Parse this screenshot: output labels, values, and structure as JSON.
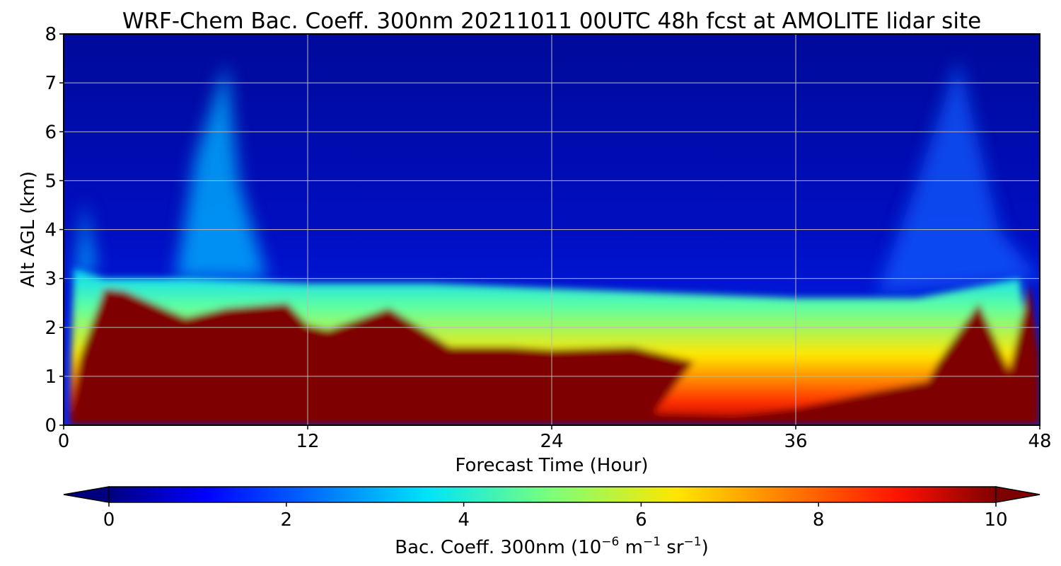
{
  "chart_data": {
    "type": "heatmap",
    "title": "WRF-Chem Bac. Coeff. 300nm  20211011 00UTC 48h fcst at AMOLITE lidar site",
    "xlabel": "Forecast Time (Hour)",
    "ylabel": "Alt AGL (km)",
    "xlim": [
      0,
      48
    ],
    "ylim": [
      0,
      8
    ],
    "xticks": [
      0,
      12,
      24,
      36,
      48
    ],
    "yticks": [
      0,
      1,
      2,
      3,
      4,
      5,
      6,
      7,
      8
    ],
    "grid": true,
    "colormap": "jet",
    "colorbar": {
      "orientation": "horizontal",
      "placement": "bottom",
      "label_prefix": "Bac. Coeff. 300nm  (10",
      "label_exp1": "−6",
      "label_mid": " m",
      "label_exp2": "−1",
      "label_mid2": " sr",
      "label_exp3": "−1",
      "label_suffix": ")",
      "range": [
        0,
        10
      ],
      "ticks": [
        0,
        2,
        4,
        6,
        8,
        10
      ],
      "extend": "both",
      "under_color": "#00007f",
      "over_color": "#7f0000"
    },
    "field_description": {
      "aerosol_layer_top_km": [
        {
          "t": 0.5,
          "z": 3.2
        },
        {
          "t": 2,
          "z": 3.0
        },
        {
          "t": 6,
          "z": 3.0
        },
        {
          "t": 12,
          "z": 2.9
        },
        {
          "t": 18,
          "z": 2.9
        },
        {
          "t": 24,
          "z": 2.8
        },
        {
          "t": 30,
          "z": 2.7
        },
        {
          "t": 36,
          "z": 2.6
        },
        {
          "t": 42,
          "z": 2.6
        },
        {
          "t": 47,
          "z": 3.0
        }
      ],
      "saturated_core_top_km": [
        {
          "t": 0.3,
          "z": 0.0
        },
        {
          "t": 0.8,
          "z": 1.4
        },
        {
          "t": 2,
          "z": 2.8
        },
        {
          "t": 3,
          "z": 2.75
        },
        {
          "t": 6,
          "z": 2.2
        },
        {
          "t": 8,
          "z": 2.4
        },
        {
          "t": 11,
          "z": 2.5
        },
        {
          "t": 12,
          "z": 2.05
        },
        {
          "t": 13,
          "z": 1.95
        },
        {
          "t": 16,
          "z": 2.4
        },
        {
          "t": 19,
          "z": 1.6
        },
        {
          "t": 22,
          "z": 1.6
        },
        {
          "t": 24,
          "z": 1.55
        },
        {
          "t": 28,
          "z": 1.6
        },
        {
          "t": 31,
          "z": 1.3
        },
        {
          "t": 29,
          "z": 0.25
        },
        {
          "t": 33,
          "z": 0.2
        },
        {
          "t": 36,
          "z": 0.35
        },
        {
          "t": 40,
          "z": 0.7
        },
        {
          "t": 42.5,
          "z": 0.9
        },
        {
          "t": 43,
          "z": 1.3
        },
        {
          "t": 45,
          "z": 2.5
        },
        {
          "t": 46.5,
          "z": 1.1
        },
        {
          "t": 47.5,
          "z": 2.9
        },
        {
          "t": 48,
          "z": 1.4
        }
      ],
      "clean_air_value": 0.5,
      "layer_value_range": [
        3,
        10
      ]
    }
  }
}
